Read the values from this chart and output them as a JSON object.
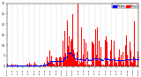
{
  "background_color": "#ffffff",
  "bar_color": "#ff0000",
  "median_color": "#0000ff",
  "ylim": [
    0,
    30
  ],
  "xlim": [
    0,
    1440
  ],
  "num_minutes": 1440,
  "seed": 42,
  "legend_labels": [
    "Median",
    "Actual"
  ],
  "yticks": [
    0,
    5,
    10,
    15,
    20,
    25,
    30
  ],
  "ytick_fontsize": 2.2,
  "xtick_fontsize": 1.6,
  "legend_fontsize": 2.0
}
